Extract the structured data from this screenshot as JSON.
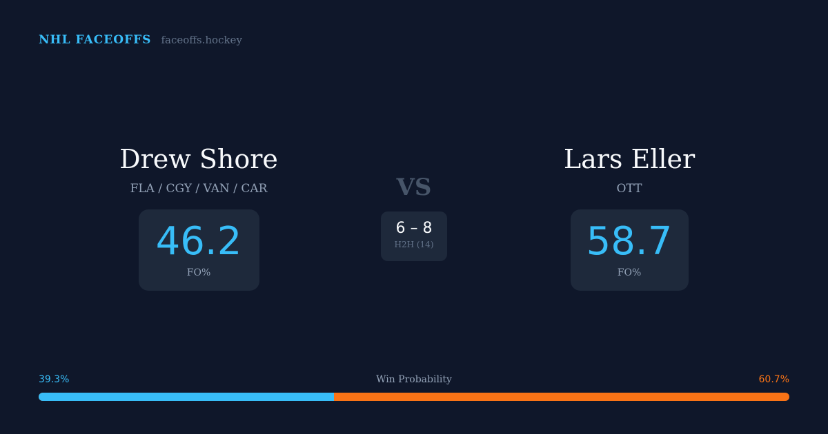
{
  "brand": {
    "title": "NHL FACEOFFS",
    "url": "faceoffs.hockey"
  },
  "left": {
    "name": "Drew Shore",
    "teams": "FLA / CGY / VAN / CAR",
    "fo_pct": "46.2",
    "fo_label": "FO%"
  },
  "right": {
    "name": "Lars Eller",
    "teams": "OTT",
    "fo_pct": "58.7",
    "fo_label": "FO%"
  },
  "vs": "VS",
  "h2h": {
    "score": "6 – 8",
    "label": "H2H (14)"
  },
  "win_probability": {
    "label": "Win Probability",
    "left_text": "39.3%",
    "right_text": "60.7%",
    "left_value": 39.3,
    "right_value": 60.7
  },
  "colors": {
    "background": "#0f172a",
    "card": "#1e293b",
    "left": "#38bdf8",
    "right": "#f97316"
  }
}
